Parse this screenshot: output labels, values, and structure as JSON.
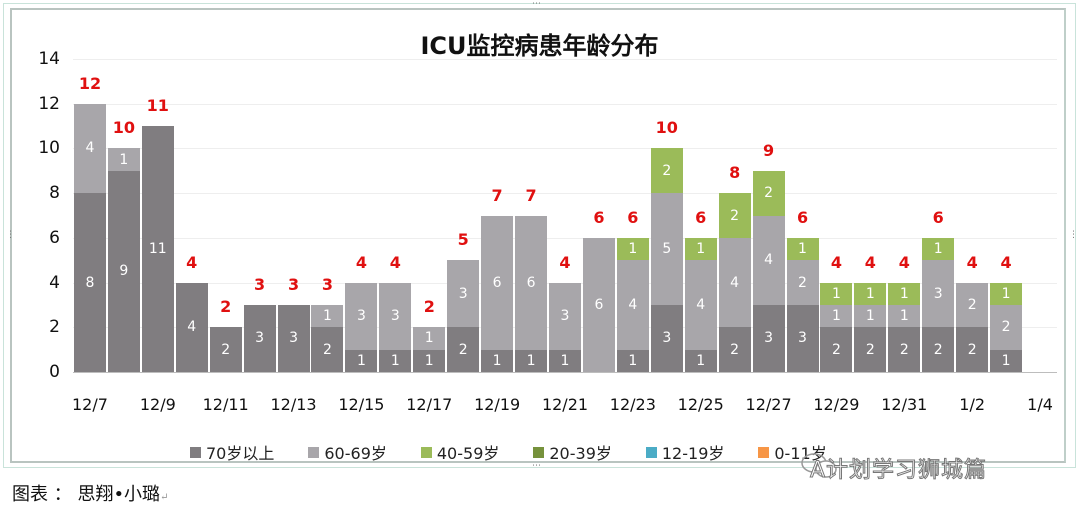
{
  "chart_data": {
    "type": "bar",
    "stacked": true,
    "title": "ICU监控病患年龄分布",
    "xlabel": "",
    "ylabel": "",
    "ylim": [
      0,
      14
    ],
    "yticks": [
      0,
      2,
      4,
      6,
      8,
      10,
      12,
      14
    ],
    "grid": true,
    "legend_position": "bottom",
    "categories": [
      "12/7",
      "12/8",
      "12/9",
      "12/10",
      "12/11",
      "12/12",
      "12/13",
      "12/14",
      "12/15",
      "12/16",
      "12/17",
      "12/18",
      "12/19",
      "12/20",
      "12/21",
      "12/22",
      "12/23",
      "12/24",
      "12/25",
      "12/26",
      "12/27",
      "12/28",
      "12/29",
      "12/30",
      "12/31",
      "1/1",
      "1/2",
      "1/3",
      "1/4"
    ],
    "xtick_labels": [
      "12/7",
      "12/9",
      "12/11",
      "12/13",
      "12/15",
      "12/17",
      "12/19",
      "12/21",
      "12/23",
      "12/25",
      "12/27",
      "12/29",
      "12/31",
      "1/2",
      "1/4"
    ],
    "series": [
      {
        "name": "70岁以上",
        "color": "#807d80",
        "values": [
          8,
          9,
          11,
          4,
          2,
          3,
          3,
          2,
          1,
          1,
          1,
          2,
          1,
          1,
          1,
          0,
          1,
          3,
          1,
          2,
          3,
          3,
          2,
          2,
          2,
          2,
          2,
          1,
          0
        ]
      },
      {
        "name": "60-69岁",
        "color": "#a8a6aa",
        "values": [
          4,
          1,
          0,
          0,
          0,
          0,
          0,
          1,
          3,
          3,
          1,
          3,
          6,
          6,
          3,
          6,
          4,
          5,
          4,
          4,
          4,
          2,
          1,
          1,
          1,
          3,
          2,
          2,
          0
        ]
      },
      {
        "name": "40-59岁",
        "color": "#9bbb59",
        "values": [
          0,
          0,
          0,
          0,
          0,
          0,
          0,
          0,
          0,
          0,
          0,
          0,
          0,
          0,
          0,
          0,
          1,
          2,
          1,
          2,
          2,
          1,
          1,
          1,
          1,
          1,
          0,
          1,
          0
        ]
      },
      {
        "name": "20-39岁",
        "color": "#76923c",
        "values": [
          0,
          0,
          0,
          0,
          0,
          0,
          0,
          0,
          0,
          0,
          0,
          0,
          0,
          0,
          0,
          0,
          0,
          0,
          0,
          0,
          0,
          0,
          0,
          0,
          0,
          0,
          0,
          0,
          0
        ]
      },
      {
        "name": "12-19岁",
        "color": "#4bacc6",
        "values": [
          0,
          0,
          0,
          0,
          0,
          0,
          0,
          0,
          0,
          0,
          0,
          0,
          0,
          0,
          0,
          0,
          0,
          0,
          0,
          0,
          0,
          0,
          0,
          0,
          0,
          0,
          0,
          0,
          0
        ]
      },
      {
        "name": "0-11岁",
        "color": "#f79646",
        "values": [
          0,
          0,
          0,
          0,
          0,
          0,
          0,
          0,
          0,
          0,
          0,
          0,
          0,
          0,
          0,
          0,
          0,
          0,
          0,
          0,
          0,
          0,
          0,
          0,
          0,
          0,
          0,
          0,
          0
        ]
      }
    ],
    "totals": [
      12,
      10,
      11,
      4,
      2,
      3,
      3,
      3,
      4,
      4,
      2,
      5,
      7,
      7,
      4,
      6,
      6,
      10,
      6,
      8,
      9,
      6,
      4,
      4,
      4,
      6,
      4,
      4,
      null
    ],
    "total_label_color": "#e01010"
  },
  "legend": [
    {
      "label": "70岁以上",
      "color": "#807d80"
    },
    {
      "label": "60-69岁",
      "color": "#a8a6aa"
    },
    {
      "label": "40-59岁",
      "color": "#9bbb59"
    },
    {
      "label": "20-39岁",
      "color": "#76923c"
    },
    {
      "label": "12-19岁",
      "color": "#4bacc6"
    },
    {
      "label": "0-11岁",
      "color": "#f79646"
    }
  ],
  "watermark": "A计划学习狮城篇",
  "caption": {
    "text": "图表 ： 思翔•小璐",
    "mark": "↵"
  }
}
